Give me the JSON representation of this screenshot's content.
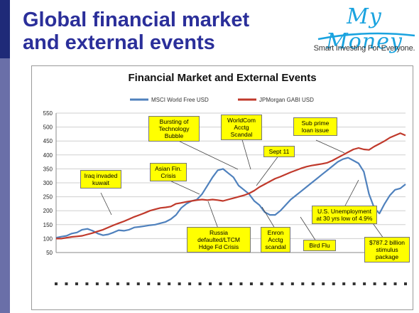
{
  "slide": {
    "title_line1": "Global financial market",
    "title_line2": "and external events"
  },
  "logo": {
    "name": "My Money",
    "tagline": "Smart Investing For Everyone.",
    "color": "#1aa3df"
  },
  "colors": {
    "title": "#2b2f9a",
    "sidebar_dark": "#1f2a78",
    "sidebar_light": "#6a6fa8",
    "msci": "#4f81bd",
    "jpm": "#c0392b",
    "callout": "#ffff00"
  },
  "chart_data": {
    "type": "line",
    "title": "Financial Market and External Events",
    "ylim": [
      50,
      550
    ],
    "yticks": [
      50,
      100,
      150,
      200,
      250,
      300,
      350,
      400,
      450,
      500,
      550
    ],
    "grid": true,
    "legend_position": "top",
    "series": [
      {
        "name": "MSCI World Free USD",
        "color": "#4f81bd",
        "values": [
          103,
          107,
          110,
          118,
          122,
          132,
          135,
          128,
          118,
          112,
          115,
          122,
          130,
          128,
          132,
          140,
          142,
          145,
          148,
          150,
          155,
          160,
          170,
          185,
          210,
          225,
          235,
          240,
          260,
          290,
          320,
          345,
          350,
          335,
          320,
          290,
          275,
          260,
          235,
          220,
          195,
          185,
          185,
          200,
          220,
          240,
          255,
          270,
          285,
          300,
          315,
          330,
          345,
          360,
          375,
          385,
          390,
          380,
          370,
          340,
          260,
          210,
          190,
          225,
          255,
          275,
          280,
          295
        ]
      },
      {
        "name": "JPMorgan GABI USD",
        "color": "#c0392b",
        "values": [
          100,
          100,
          103,
          106,
          108,
          110,
          115,
          120,
          126,
          132,
          140,
          148,
          155,
          162,
          170,
          178,
          185,
          192,
          200,
          205,
          210,
          212,
          215,
          225,
          228,
          232,
          235,
          238,
          240,
          238,
          240,
          238,
          235,
          240,
          245,
          250,
          255,
          262,
          272,
          285,
          295,
          305,
          315,
          322,
          330,
          338,
          345,
          352,
          358,
          362,
          365,
          368,
          372,
          380,
          390,
          400,
          410,
          420,
          425,
          420,
          418,
          430,
          440,
          450,
          462,
          470,
          478,
          470
        ]
      }
    ]
  },
  "annotations": [
    {
      "id": "iraq",
      "text": "Iraq invaded kuwait"
    },
    {
      "id": "asian",
      "text": "Asian Fin. Crisis"
    },
    {
      "id": "bubble",
      "text": "Bursting of Technology Bubble"
    },
    {
      "id": "worldcom",
      "text": "WorldCom Acctg Scandal"
    },
    {
      "id": "sept11",
      "text": "Sept 11"
    },
    {
      "id": "subprime",
      "text": "Sub prime loan issue"
    },
    {
      "id": "russia",
      "text": "Russia defaulted/LTCM Hdge Fd Crisis"
    },
    {
      "id": "enron",
      "text": "Enron Acctg scandal"
    },
    {
      "id": "birdflu",
      "text": "Bird Flu"
    },
    {
      "id": "unemp",
      "text": "U.S. Unemployment at 30 yrs low of 4.9%"
    },
    {
      "id": "stimulus",
      "text": "$787.2 billion stimulus package"
    }
  ]
}
